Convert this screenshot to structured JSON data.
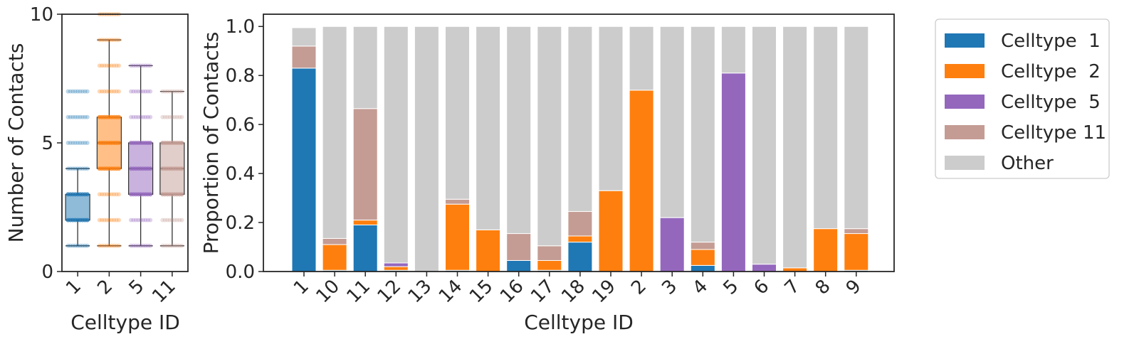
{
  "colors": {
    "celltype_1": "#1f77b4",
    "celltype_2": "#ff7f0e",
    "celltype_5": "#9467bd",
    "celltype_11": "#c49c94",
    "other": "#cccccc",
    "axis": "#262626"
  },
  "chart_data": [
    {
      "type": "box",
      "title": "",
      "xlabel": "Celltype ID",
      "ylabel": "Number of Contacts",
      "ylim": [
        0,
        10
      ],
      "yticks": [
        "0",
        "5",
        "10"
      ],
      "categories": [
        "1",
        "2",
        "5",
        "11"
      ],
      "color_keys": [
        "celltype_1",
        "celltype_2",
        "celltype_5",
        "celltype_11"
      ],
      "boxes": [
        {
          "category": "1",
          "whisker_low": 1,
          "q1": 2,
          "median": 2,
          "q3": 3,
          "whisker_high": 4,
          "points": [
            1,
            2,
            3,
            4,
            5,
            6,
            7
          ]
        },
        {
          "category": "2",
          "whisker_low": 1,
          "q1": 4,
          "median": 5,
          "q3": 6,
          "whisker_high": 9,
          "points": [
            1,
            2,
            3,
            4,
            5,
            6,
            7,
            8,
            9,
            10
          ]
        },
        {
          "category": "5",
          "whisker_low": 1,
          "q1": 3,
          "median": 4,
          "q3": 5,
          "whisker_high": 8,
          "points": [
            1,
            2,
            3,
            4,
            5,
            6,
            7,
            8
          ]
        },
        {
          "category": "11",
          "whisker_low": 1,
          "q1": 3,
          "median": 4,
          "q3": 5,
          "whisker_high": 7,
          "points": [
            1,
            2,
            3,
            4,
            5,
            6,
            7
          ]
        }
      ]
    },
    {
      "type": "bar",
      "stacked": true,
      "title": "",
      "xlabel": "Celltype ID",
      "ylabel": "Proportion of Contacts",
      "ylim": [
        0,
        1.05
      ],
      "yticks": [
        "0.0",
        "0.2",
        "0.4",
        "0.6",
        "0.8",
        "1.0"
      ],
      "categories": [
        "1",
        "10",
        "11",
        "12",
        "13",
        "14",
        "15",
        "16",
        "17",
        "18",
        "19",
        "2",
        "3",
        "4",
        "5",
        "6",
        "7",
        "8",
        "9"
      ],
      "series": [
        {
          "name": "Celltype  1",
          "color_key": "celltype_1",
          "values": [
            0.83,
            0.005,
            0.19,
            0.005,
            0,
            0.005,
            0,
            0.045,
            0.005,
            0.12,
            0,
            0,
            0,
            0.025,
            0,
            0,
            0,
            0,
            0.005
          ]
        },
        {
          "name": "Celltype  2",
          "color_key": "celltype_2",
          "values": [
            0,
            0.105,
            0.02,
            0.015,
            0,
            0.27,
            0.17,
            0,
            0.04,
            0.025,
            0.33,
            0.74,
            0,
            0.065,
            0,
            0,
            0.015,
            0.175,
            0.15
          ]
        },
        {
          "name": "Celltype  5",
          "color_key": "celltype_5",
          "values": [
            0,
            0,
            0,
            0.015,
            0,
            0,
            0,
            0,
            0,
            0,
            0,
            0,
            0.22,
            0,
            0.81,
            0.03,
            0,
            0,
            0
          ]
        },
        {
          "name": "Celltype 11",
          "color_key": "celltype_11",
          "values": [
            0.09,
            0.025,
            0.455,
            0,
            0,
            0.02,
            0,
            0.11,
            0.06,
            0.1,
            0,
            0,
            0,
            0.03,
            0,
            0,
            0,
            0,
            0.02
          ]
        },
        {
          "name": "Other",
          "color_key": "other",
          "values": [
            0.075,
            0.865,
            0.335,
            0.965,
            1.0,
            0.705,
            0.83,
            0.845,
            0.895,
            0.755,
            0.67,
            0.26,
            0.78,
            0.88,
            0.19,
            0.97,
            0.985,
            0.825,
            0.825
          ]
        }
      ],
      "legend_position": "outside-right"
    }
  ]
}
